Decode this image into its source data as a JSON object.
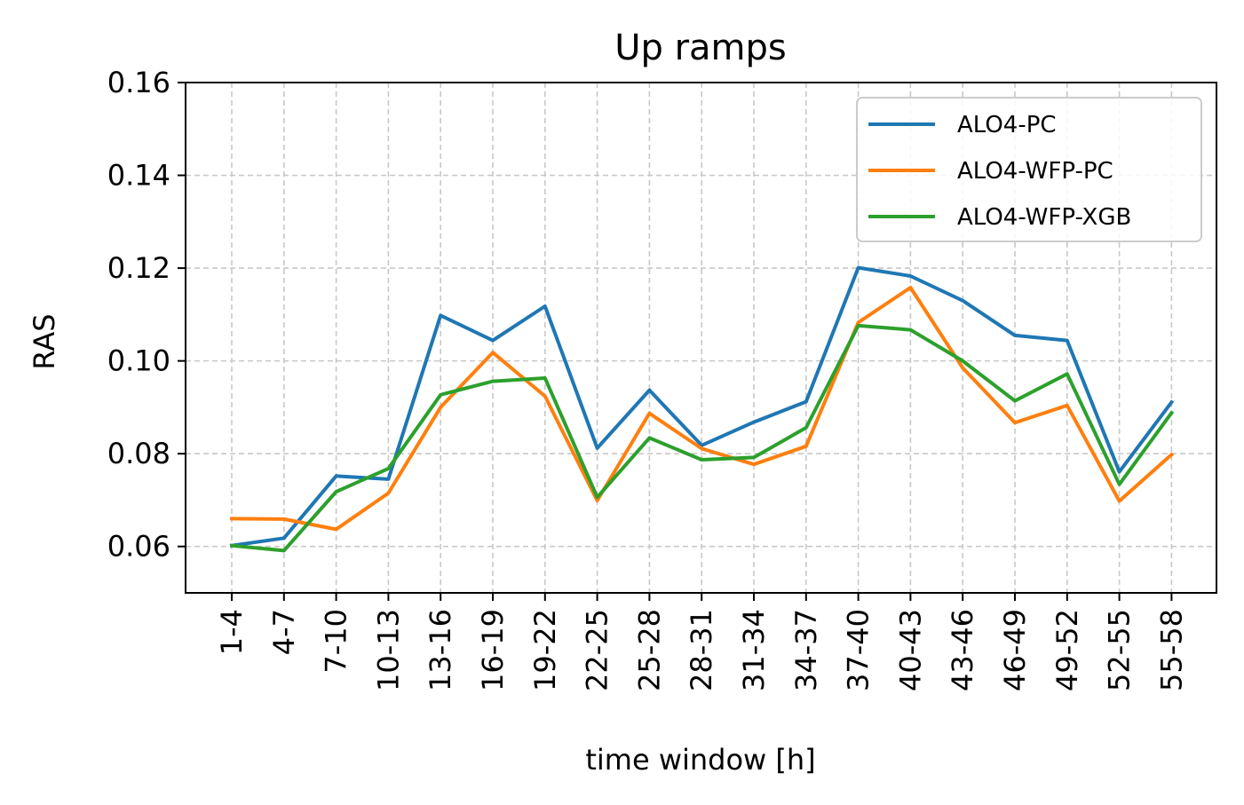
{
  "chart_data": {
    "type": "line",
    "title": "Up ramps",
    "xlabel": "time window [h]",
    "ylabel": "RAS",
    "categories": [
      "1-4",
      "4-7",
      "7-10",
      "10-13",
      "13-16",
      "16-19",
      "19-22",
      "22-25",
      "25-28",
      "28-31",
      "31-34",
      "34-37",
      "37-40",
      "40-43",
      "43-46",
      "46-49",
      "49-52",
      "52-55",
      "55-58"
    ],
    "ylim": [
      0.05,
      0.16
    ],
    "yticks": [
      0.06,
      0.08,
      0.1,
      0.12,
      0.14,
      0.16
    ],
    "ytick_labels": [
      "0.06",
      "0.08",
      "0.10",
      "0.12",
      "0.14",
      "0.16"
    ],
    "grid": true,
    "legend_position": "top-right",
    "series": [
      {
        "name": "ALO4-PC",
        "color": "#1f77b4",
        "values": [
          0.0602,
          0.0618,
          0.0752,
          0.0745,
          0.1098,
          0.1044,
          0.1118,
          0.0812,
          0.0937,
          0.0818,
          0.0868,
          0.0912,
          0.1201,
          0.1183,
          0.113,
          0.1055,
          0.1044,
          0.0761,
          0.0911
        ]
      },
      {
        "name": "ALO4-WFP-PC",
        "color": "#ff7f0e",
        "values": [
          0.066,
          0.0659,
          0.0637,
          0.0715,
          0.09,
          0.1018,
          0.0924,
          0.0699,
          0.0887,
          0.0811,
          0.0777,
          0.0816,
          0.1083,
          0.1158,
          0.0985,
          0.0867,
          0.0904,
          0.0698,
          0.0798
        ]
      },
      {
        "name": "ALO4-WFP-XGB",
        "color": "#2ca02c",
        "values": [
          0.0602,
          0.0591,
          0.0718,
          0.0768,
          0.0927,
          0.0956,
          0.0963,
          0.0706,
          0.0834,
          0.0787,
          0.0792,
          0.0856,
          0.1076,
          0.1067,
          0.1,
          0.0914,
          0.0972,
          0.0734,
          0.0888
        ]
      }
    ]
  }
}
